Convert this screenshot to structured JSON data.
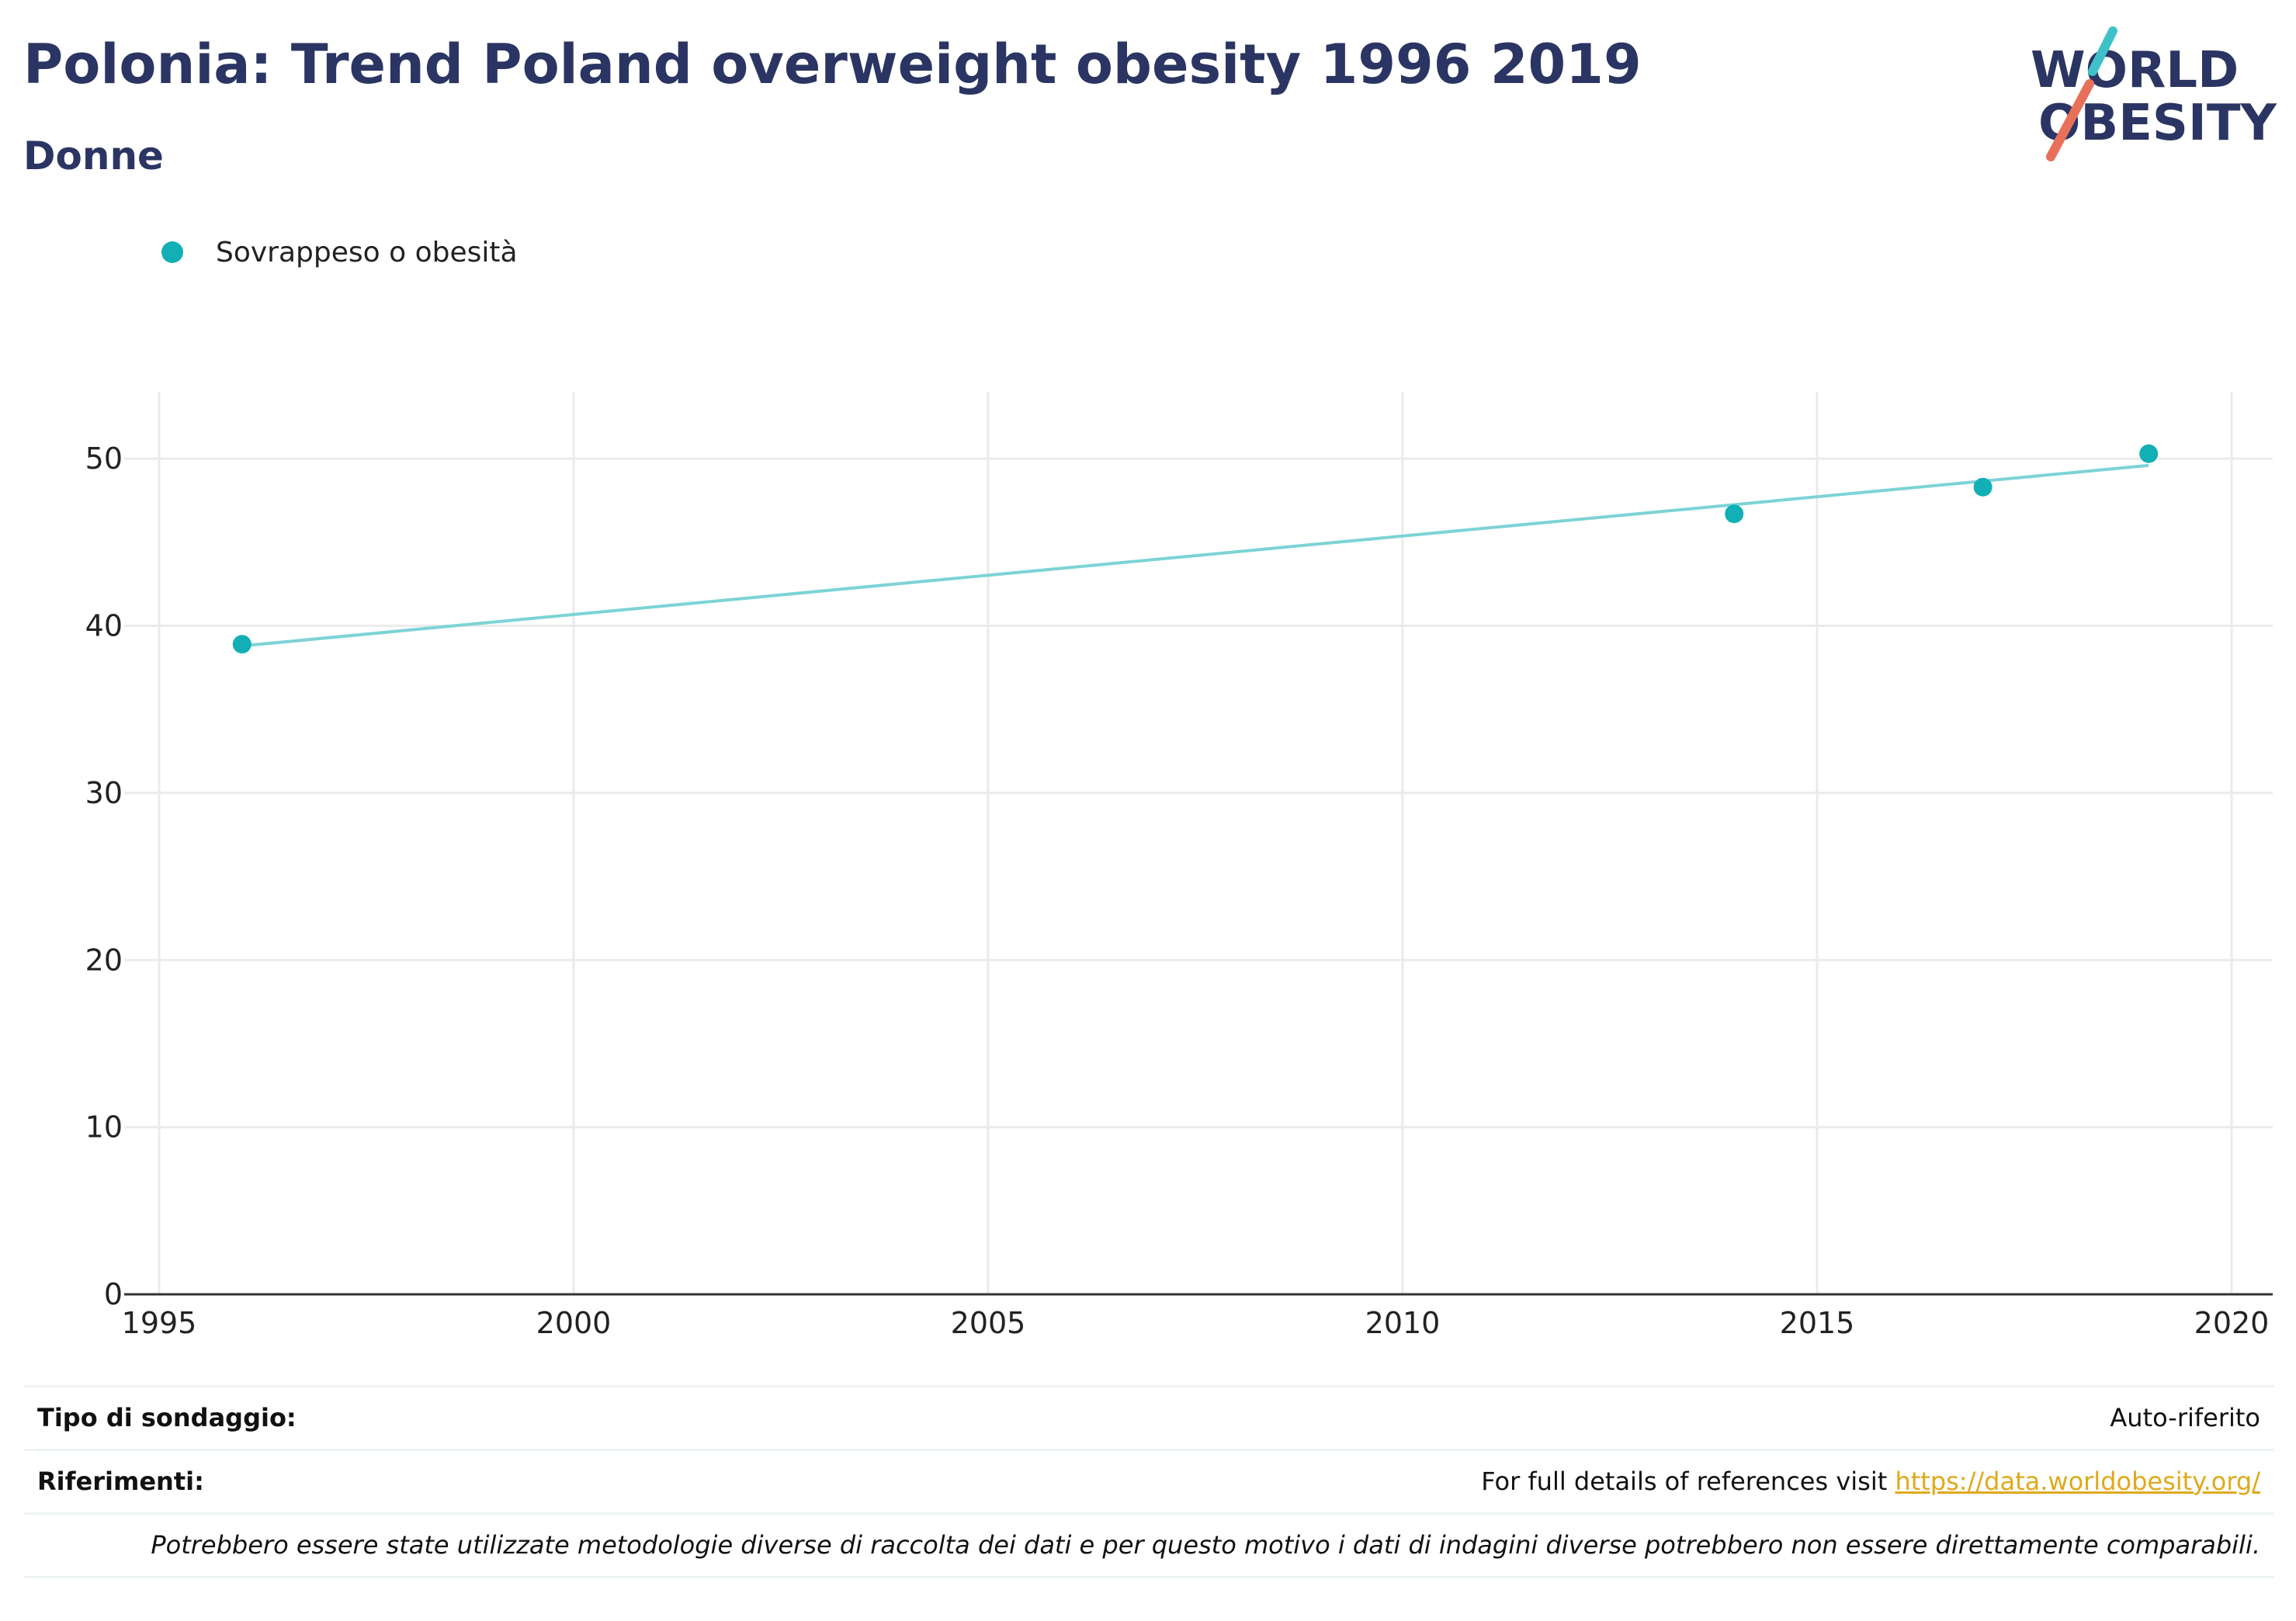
{
  "title": "Polonia: Trend Poland overweight obesity 1996 2019",
  "subtitle": "Donne",
  "logo": {
    "line1": "WORLD",
    "line2": "OBESITY"
  },
  "colors": {
    "series": "#12afb6",
    "trend": "#7dd3d6",
    "title": "#2b3563",
    "link": "#e0a91b"
  },
  "chart_data": {
    "type": "scatter",
    "legend": {
      "label": "Sovrappeso o obesità",
      "placement": "top-left"
    },
    "series": [
      {
        "name": "Sovrappeso o obesità",
        "x": [
          1996,
          2014,
          2017,
          2019
        ],
        "y": [
          38.9,
          46.7,
          48.3,
          50.3
        ]
      }
    ],
    "trendline": {
      "x": [
        1996,
        2019
      ],
      "y": [
        38.8,
        49.6
      ]
    },
    "xlim": [
      1995,
      2020.5
    ],
    "ylim": [
      0,
      54
    ],
    "xticks": [
      1995,
      2000,
      2005,
      2010,
      2015,
      2020
    ],
    "yticks": [
      0,
      10,
      20,
      30,
      40,
      50
    ],
    "grid": true
  },
  "footer": {
    "survey_label": "Tipo di sondaggio:",
    "survey_value": "Auto-riferito",
    "refs_label": "Riferimenti:",
    "refs_text": "For full details of references visit ",
    "refs_link": "https://data.worldobesity.org/",
    "note": "Potrebbero essere state utilizzate metodologie diverse di raccolta dei dati e per questo motivo i dati di indagini diverse potrebbero non essere direttamente comparabili."
  }
}
